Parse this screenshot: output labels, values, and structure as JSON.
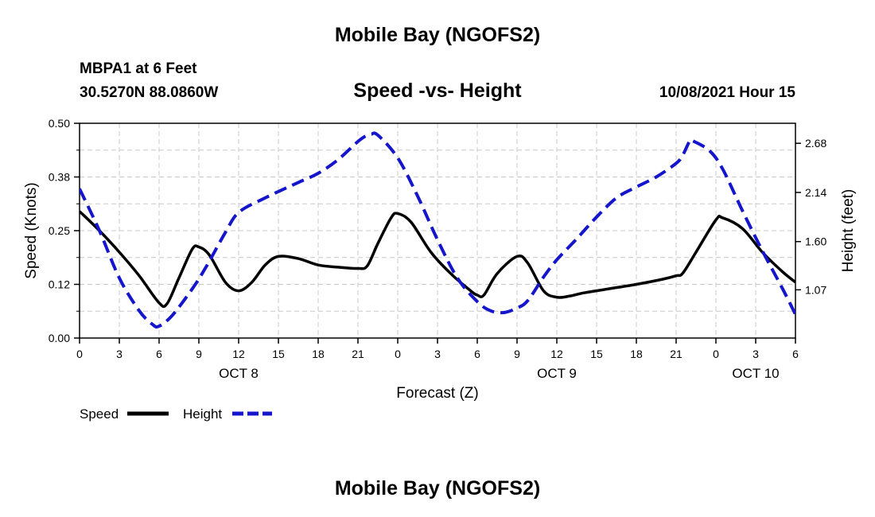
{
  "page": {
    "title_top": "Mobile Bay (NGOFS2)",
    "title_bottom": "Mobile Bay (NGOFS2)",
    "station": "MBPA1 at 6 Feet",
    "coords": "30.5270N  88.0860W",
    "forecast_time": "10/08/2021 Hour 15"
  },
  "chart_data": {
    "type": "line",
    "title": "Speed -vs- Height",
    "xlabel": "Forecast (Z)",
    "ylabel_left": "Speed (Knots)",
    "ylabel_right": "Height (feet)",
    "x_range": [
      0,
      54
    ],
    "x_ticks": [
      0,
      3,
      6,
      9,
      12,
      15,
      18,
      21,
      24,
      27,
      30,
      33,
      36,
      39,
      42,
      45,
      48,
      51,
      54
    ],
    "x_tick_labels": [
      "0",
      "3",
      "6",
      "9",
      "12",
      "15",
      "18",
      "21",
      "0",
      "3",
      "6",
      "9",
      "12",
      "15",
      "18",
      "21",
      "0",
      "3",
      "6"
    ],
    "date_labels": [
      {
        "x": 12,
        "text": "OCT 8"
      },
      {
        "x": 36,
        "text": "OCT 9"
      },
      {
        "x": 51,
        "text": "OCT 10"
      }
    ],
    "left_axis": {
      "range": [
        0,
        0.5
      ],
      "ticks": [
        0,
        0.125,
        0.25,
        0.375,
        0.5
      ],
      "tick_labels": [
        "0.00",
        "0.12",
        "0.25",
        "0.38",
        "0.50"
      ]
    },
    "right_axis": {
      "range": [
        0.54,
        2.9
      ],
      "ticks": [
        1.07,
        1.6,
        2.14,
        2.68
      ],
      "tick_labels": [
        "1.07",
        "1.60",
        "2.14",
        "2.68"
      ]
    },
    "grid": true,
    "legend_position": "bottom-left",
    "series": [
      {
        "name": "Speed",
        "axis": "left",
        "color": "#000000",
        "dash": "solid",
        "x": [
          0,
          1.5,
          3,
          4.5,
          6,
          6.6,
          7.5,
          8.5,
          9,
          9.8,
          11,
          12,
          13,
          14,
          15,
          16.5,
          18,
          19.5,
          21,
          21.7,
          22.5,
          23.5,
          24,
          25,
          26.5,
          28,
          29.5,
          30,
          30.5,
          31.5,
          33,
          33.8,
          35,
          36,
          37,
          38,
          40,
          42,
          44,
          45,
          45.5,
          46.5,
          48,
          48.5,
          50,
          51.5,
          53,
          54
        ],
        "y": [
          0.295,
          0.25,
          0.2,
          0.145,
          0.082,
          0.08,
          0.14,
          0.207,
          0.212,
          0.193,
          0.13,
          0.11,
          0.13,
          0.17,
          0.19,
          0.185,
          0.17,
          0.165,
          0.162,
          0.168,
          0.22,
          0.28,
          0.29,
          0.27,
          0.2,
          0.15,
          0.11,
          0.1,
          0.1,
          0.15,
          0.19,
          0.175,
          0.11,
          0.095,
          0.098,
          0.105,
          0.115,
          0.125,
          0.137,
          0.145,
          0.151,
          0.2,
          0.275,
          0.28,
          0.255,
          0.2,
          0.155,
          0.13
        ]
      },
      {
        "name": "Height",
        "axis": "right",
        "color": "#1515cc",
        "dash": "dashed",
        "x": [
          0,
          1.5,
          3,
          4.5,
          5.5,
          6,
          7,
          8.5,
          9.5,
          11,
          12,
          14,
          16.5,
          18,
          19.5,
          21,
          21.7,
          22,
          22.5,
          24,
          25.5,
          27,
          28.5,
          30,
          31,
          32,
          33,
          33.8,
          35,
          36,
          37.5,
          39,
          40.5,
          42,
          43.5,
          45,
          45.5,
          46,
          46.2,
          47.5,
          48.5,
          50,
          51.5,
          53,
          54
        ],
        "y": [
          2.18,
          1.72,
          1.2,
          0.84,
          0.69,
          0.67,
          0.79,
          1.08,
          1.31,
          1.7,
          1.92,
          2.08,
          2.25,
          2.35,
          2.5,
          2.7,
          2.77,
          2.78,
          2.77,
          2.52,
          2.1,
          1.62,
          1.2,
          0.94,
          0.84,
          0.82,
          0.87,
          0.95,
          1.21,
          1.4,
          1.63,
          1.87,
          2.08,
          2.2,
          2.31,
          2.46,
          2.55,
          2.7,
          2.71,
          2.6,
          2.4,
          1.94,
          1.5,
          1.09,
          0.8
        ]
      }
    ]
  }
}
